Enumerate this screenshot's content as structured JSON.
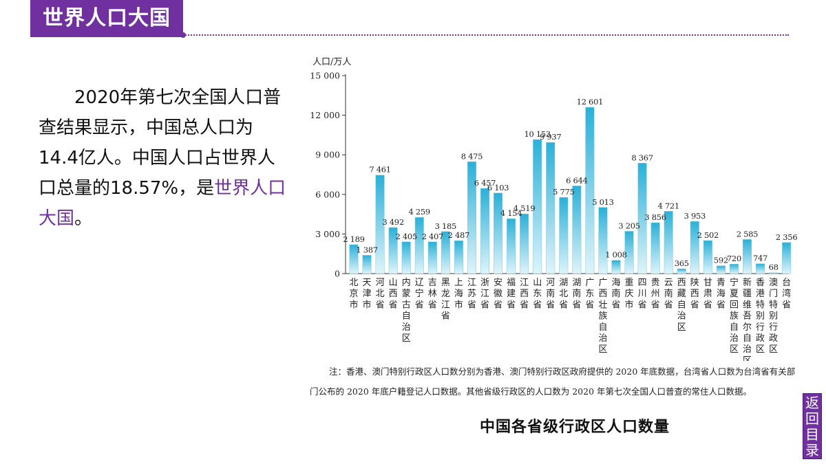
{
  "header": {
    "title": "世界人口大国"
  },
  "paragraph": {
    "text": "2020年第七次全国人口普查结果显示，中国总人口为14.4亿人。中国人口占世界人口总量的18.57%，是",
    "highlight": "世界人口大国",
    "end": "。"
  },
  "chart_data": {
    "type": "bar",
    "title": "中国各省级行政区人口数量",
    "ylabel": "人口/万人",
    "ylim": [
      0,
      15000
    ],
    "yticks": [
      0,
      3000,
      6000,
      9000,
      12000,
      15000
    ],
    "ytick_labels": [
      "0",
      "3 000",
      "6 000",
      "9 000",
      "12 000",
      "15 000"
    ],
    "categories": [
      "北京市",
      "天津市",
      "河北省",
      "山西省",
      "内蒙古自治区",
      "辽宁省",
      "吉林省",
      "黑龙江省",
      "上海市",
      "江苏省",
      "浙江省",
      "安徽省",
      "福建省",
      "江西省",
      "山东省",
      "河南省",
      "湖北省",
      "湖南省",
      "广东省",
      "广西壮族自治区",
      "海南省",
      "重庆市",
      "四川省",
      "贵州省",
      "云南省",
      "西藏自治区",
      "陕西省",
      "甘肃省",
      "青海省",
      "宁夏回族自治区",
      "新疆维吾尔自治区",
      "香港特别行政区",
      "澳门特别行政区",
      "台湾省"
    ],
    "values": [
      2189,
      1387,
      7461,
      3492,
      2405,
      4259,
      2407,
      3185,
      2487,
      8475,
      6457,
      6103,
      4154,
      4519,
      10153,
      9937,
      5775,
      6644,
      12601,
      5013,
      1008,
      3205,
      8367,
      3856,
      4721,
      365,
      3953,
      2502,
      592,
      720,
      2585,
      747,
      68,
      2356
    ],
    "value_labels": [
      "2 189",
      "1 387",
      "7 461",
      "3 492",
      "2 405",
      "4 259",
      "2 407",
      "3 185",
      "2 487",
      "8 475",
      "6 457",
      "6 103",
      "4 154",
      "4 519",
      "10 153",
      "9 937",
      "5 775",
      "6 644",
      "12 601",
      "5 013",
      "1 008",
      "3 205",
      "8 367",
      "3 856",
      "4 721",
      "365",
      "3 953",
      "2 502",
      "592",
      "720",
      "2 585",
      "747",
      "68",
      "2 356"
    ],
    "grid": false,
    "bar_color_top": "#2ab0d8",
    "bar_color_bottom": "#dff4fa"
  },
  "note": "注：香港、澳门特别行政区人口数分别为香港、澳门特别行政区政府提供的 2020 年底数据，台湾省人口数为台湾省有关部门公布的 2020 年底户籍登记人口数据。其他省级行政区的人口数为 2020 年第七次全国人口普查的常住人口数据。",
  "back_button": {
    "label": "返回目录"
  },
  "colors": {
    "accent": "#7030a0"
  }
}
